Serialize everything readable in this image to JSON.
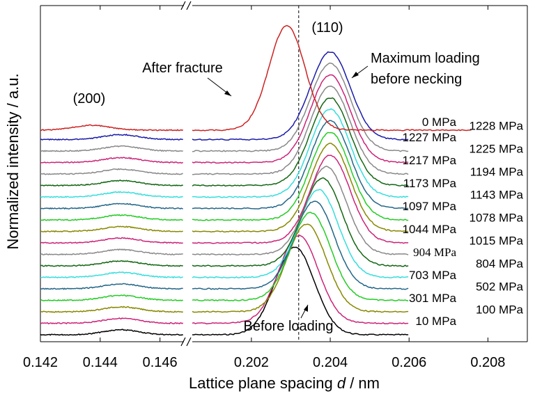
{
  "chart_data": {
    "type": "line",
    "title": "",
    "xlabel_prefix": "Lattice plane spacing ",
    "xlabel_var": "d",
    "xlabel_suffix": " / nm",
    "ylabel": "Normalized intensity / a.u.",
    "axis_break": true,
    "panels": [
      {
        "name": "left",
        "xlim": [
          0.142,
          0.1468
        ],
        "ticks": [
          "0.142",
          "0.144",
          "0.146"
        ],
        "tick_values": [
          0.142,
          0.144,
          0.146
        ],
        "peak_label": "(200)",
        "peak_center": 0.1447
      },
      {
        "name": "right",
        "xlim": [
          0.2005,
          0.209
        ],
        "ticks": [
          "0.202",
          "0.204",
          "0.206",
          "0.208"
        ],
        "tick_values": [
          0.202,
          0.204,
          0.206,
          0.208
        ],
        "peak_label": "(110)"
      }
    ],
    "reference_line_x": 0.2032,
    "series": [
      {
        "name": "10 MPa",
        "label_side": "inner",
        "color": "#000000",
        "peak_d": 0.2031,
        "width": 0.0011
      },
      {
        "name": "100 MPa",
        "label_side": "outer",
        "color": "#cc2277",
        "peak_d": 0.2032,
        "width": 0.0011
      },
      {
        "name": "301 MPa",
        "label_side": "inner",
        "color": "#888800",
        "peak_d": 0.2034,
        "width": 0.0011
      },
      {
        "name": "502 MPa",
        "label_side": "outer",
        "color": "#22cc22",
        "peak_d": 0.2035,
        "width": 0.0011
      },
      {
        "name": "703 MPa",
        "label_side": "inner",
        "color": "#226688",
        "peak_d": 0.2036,
        "width": 0.0011
      },
      {
        "name": "804 MPa",
        "label_side": "outer",
        "color": "#33dddd",
        "peak_d": 0.2037,
        "width": 0.0011
      },
      {
        "name": "904 MPa",
        "label_side": "inner",
        "color": "#116611",
        "peak_d": 0.2038,
        "width": 0.0011
      },
      {
        "name": "1015 MPa",
        "label_side": "outer",
        "color": "#888888",
        "peak_d": 0.2039,
        "width": 0.0011
      },
      {
        "name": "1044 MPa",
        "label_side": "inner",
        "color": "#cc2277",
        "peak_d": 0.204,
        "width": 0.0011
      },
      {
        "name": "1078 MPa",
        "label_side": "outer",
        "color": "#888800",
        "peak_d": 0.204,
        "width": 0.0011
      },
      {
        "name": "1097 MPa",
        "label_side": "inner",
        "color": "#22cc22",
        "peak_d": 0.204,
        "width": 0.0011
      },
      {
        "name": "1143 MPa",
        "label_side": "outer",
        "color": "#226688",
        "peak_d": 0.204,
        "width": 0.0011
      },
      {
        "name": "1173 MPa",
        "label_side": "inner",
        "color": "#33dddd",
        "peak_d": 0.204,
        "width": 0.0011
      },
      {
        "name": "1194 MPa",
        "label_side": "outer",
        "color": "#116611",
        "peak_d": 0.204,
        "width": 0.0011
      },
      {
        "name": "1217 MPa",
        "label_side": "inner",
        "color": "#888888",
        "peak_d": 0.204,
        "width": 0.0011
      },
      {
        "name": "1225 MPa",
        "label_side": "outer",
        "color": "#cc2277",
        "peak_d": 0.204,
        "width": 0.0011
      },
      {
        "name": "1227 MPa",
        "label_side": "inner",
        "color": "#888888",
        "peak_d": 0.204,
        "width": 0.0011
      },
      {
        "name": "1228 MPa",
        "label_side": "outer",
        "color": "#1a1aaa",
        "peak_d": 0.204,
        "width": 0.0011
      },
      {
        "name": "0 MPa",
        "label_side": "inner",
        "color": "#cc2222",
        "peak_d": 0.2029,
        "width": 0.001
      }
    ],
    "annotations": {
      "before_loading": "Before loading",
      "after_fracture": "After fracture",
      "max_loading_line1": "Maximum loading",
      "max_loading_line2": "before necking"
    }
  }
}
